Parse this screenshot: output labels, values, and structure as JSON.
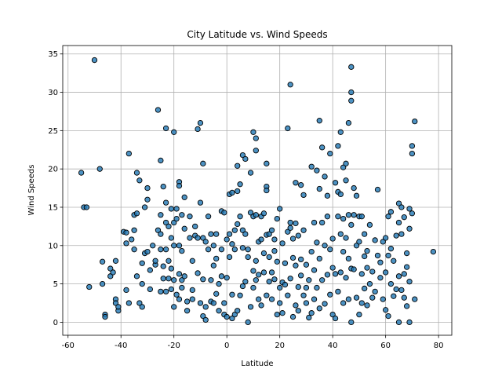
{
  "chart_data": {
    "type": "scatter",
    "title": "City Latitude vs. Wind Speeds",
    "x_label": "Latitude",
    "y_label": "Wind Speeds",
    "color": "#1f77b4",
    "edgecolor": "#000000",
    "grid": true,
    "xlim": [
      -62,
      85
    ],
    "ylim": [
      -1.7,
      36.1
    ],
    "xticks": [
      -60,
      -40,
      -20,
      0,
      20,
      40,
      60,
      80
    ],
    "yticks": [
      0,
      5,
      10,
      15,
      20,
      25,
      30,
      35
    ],
    "x": [
      -55,
      -54,
      -53,
      -52,
      -50,
      -48,
      -47,
      -47,
      -46,
      -46,
      -44,
      -44,
      -43,
      -42,
      -42,
      -42,
      -41,
      -41,
      -39,
      -38,
      -38,
      -38,
      -37,
      -37,
      -36,
      -35,
      -35,
      -35,
      -34,
      -34,
      -34,
      -33,
      -33,
      -32,
      -32,
      -32,
      -31,
      -31,
      -30,
      -30,
      -30,
      -29,
      -29,
      -28,
      -27,
      -27,
      -26,
      -26,
      -25,
      -25,
      -25,
      -25,
      -25,
      -24,
      -24,
      -24,
      -23,
      -23,
      -23,
      -23,
      -23,
      -22,
      -22,
      -22,
      -21,
      -21,
      -21,
      -21,
      -20,
      -20,
      -20,
      -20,
      -20,
      -19,
      -19,
      -19,
      -18,
      -18,
      -18,
      -18,
      -18,
      -17,
      -17,
      -17,
      -17,
      -16,
      -16,
      -16,
      -15,
      -15,
      -14,
      -14,
      -13,
      -13,
      -13,
      -12,
      -12,
      -11,
      -11,
      -11,
      -10,
      -10,
      -10,
      -9,
      -9,
      -9,
      -9,
      -8,
      -8,
      -8,
      -7,
      -7,
      -6,
      -6,
      -6,
      -5,
      -5,
      -5,
      -4,
      -4,
      -4,
      -3,
      -3,
      -2,
      -2,
      -2,
      -1,
      -1,
      -1,
      0,
      0,
      0,
      1,
      1,
      1,
      2,
      2,
      2,
      2,
      3,
      3,
      3,
      4,
      4,
      4,
      4,
      5,
      5,
      5,
      6,
      6,
      6,
      6,
      7,
      7,
      7,
      8,
      8,
      8,
      9,
      9,
      9,
      10,
      10,
      10,
      10,
      11,
      11,
      11,
      11,
      11,
      12,
      12,
      12,
      13,
      13,
      13,
      14,
      14,
      14,
      15,
      15,
      15,
      15,
      15,
      16,
      16,
      16,
      17,
      17,
      17,
      18,
      18,
      18,
      19,
      19,
      19,
      20,
      20,
      20,
      21,
      21,
      21,
      22,
      22,
      23,
      23,
      23,
      24,
      24,
      24,
      24,
      25,
      25,
      25,
      26,
      26,
      26,
      26,
      27,
      27,
      27,
      28,
      28,
      28,
      29,
      29,
      29,
      30,
      30,
      30,
      31,
      31,
      32,
      32,
      32,
      33,
      33,
      33,
      34,
      34,
      34,
      35,
      35,
      35,
      35,
      36,
      36,
      36,
      37,
      37,
      37,
      38,
      38,
      38,
      39,
      39,
      39,
      40,
      40,
      40,
      41,
      41,
      41,
      42,
      42,
      42,
      42,
      43,
      43,
      43,
      43,
      44,
      44,
      44,
      44,
      45,
      45,
      45,
      45,
      46,
      46,
      46,
      46,
      47,
      47,
      47,
      47,
      47,
      47,
      48,
      48,
      48,
      49,
      49,
      49,
      50,
      50,
      50,
      51,
      51,
      51,
      52,
      52,
      52,
      53,
      53,
      53,
      54,
      54,
      55,
      55,
      56,
      56,
      57,
      57,
      58,
      58,
      59,
      59,
      60,
      60,
      60,
      61,
      61,
      61,
      62,
      62,
      62,
      63,
      63,
      64,
      64,
      65,
      65,
      65,
      65,
      66,
      66,
      66,
      67,
      67,
      67,
      68,
      68,
      68,
      69,
      69,
      69,
      69,
      70,
      70,
      70,
      71,
      71,
      78
    ],
    "y": [
      19.5,
      15,
      15,
      4.6,
      34.2,
      20,
      7.9,
      5,
      1,
      0.7,
      6,
      7,
      6.5,
      3,
      2.5,
      8,
      1.5,
      2,
      11.8,
      10.3,
      4.2,
      11.7,
      22,
      2.5,
      10.8,
      9.5,
      12,
      14,
      19.5,
      14.2,
      6,
      18.5,
      2.5,
      5,
      2,
      7.7,
      15,
      9,
      17.5,
      16,
      9.2,
      6.8,
      4.3,
      10,
      7.5,
      8,
      27.7,
      12,
      11.5,
      14,
      21.1,
      9.5,
      4,
      17.7,
      7.3,
      5.7,
      25.3,
      15.6,
      13,
      9.5,
      4,
      12.5,
      8,
      5.7,
      14.8,
      11,
      7,
      4.3,
      24.8,
      13,
      10,
      5.5,
      2,
      14.8,
      13.5,
      3.6,
      18.3,
      17.8,
      10,
      6.3,
      3,
      14,
      9.3,
      5.5,
      4.5,
      16.3,
      12.2,
      6,
      1.5,
      2.7,
      13.8,
      11,
      4.2,
      3,
      8,
      12.5,
      11.3,
      25.2,
      11,
      6.4,
      26,
      15.6,
      2.5,
      20.7,
      11,
      5.6,
      0.8,
      0.3,
      10.5,
      2,
      9.5,
      13.8,
      11.5,
      2.7,
      5.5,
      2.5,
      7.4,
      10,
      11.5,
      8.3,
      3.7,
      1.5,
      5,
      14.5,
      9.5,
      6,
      1,
      2.5,
      14.3,
      10.8,
      0.7,
      5.8,
      8.5,
      11.5,
      16.7,
      16.9,
      0.5,
      3.6,
      10.2,
      1,
      9.5,
      12,
      12.8,
      20.4,
      17.1,
      1.5,
      18,
      13.8,
      3.5,
      21.8,
      12,
      9.7,
      4.7,
      21.3,
      11.5,
      5.3,
      0,
      9.5,
      8.5,
      19.5,
      14.3,
      2,
      24.8,
      13.8,
      6.7,
      4.5,
      24,
      22.4,
      14,
      8,
      5.5,
      10.5,
      6.2,
      3,
      13.8,
      10.8,
      2.2,
      14.2,
      9,
      6.5,
      20.7,
      17.7,
      17.2,
      11.4,
      3.5,
      11.5,
      8.5,
      5.3,
      12,
      6.5,
      3,
      9.3,
      10.8,
      5.6,
      13.5,
      7.9,
      1,
      14.8,
      4.5,
      2.5,
      10.3,
      5.2,
      1.2,
      7.7,
      4.9,
      25.3,
      11.8,
      3.5,
      31,
      13,
      12.3,
      5.7,
      10.9,
      8.4,
      0.7,
      18.2,
      12.9,
      7.4,
      2.2,
      11.3,
      4.6,
      1.5,
      8.2,
      6.1,
      17.9,
      16.6,
      12,
      3.5,
      7.5,
      2.5,
      4.5,
      0.6,
      5.5,
      20.3,
      9.2,
      1.2,
      13,
      6.8,
      3,
      10.4,
      19.8,
      4.5,
      26.3,
      17.4,
      8.3,
      1.8,
      22.8,
      13,
      5.5,
      19,
      10,
      2.4,
      16.5,
      13.8,
      6.2,
      22,
      9.5,
      3.6,
      10.9,
      7.1,
      1,
      18.2,
      6.3,
      0.5,
      23,
      17,
      13.8,
      4,
      24.8,
      16.7,
      11.5,
      6.5,
      20.2,
      13.5,
      9.2,
      2.5,
      20.7,
      18.5,
      11,
      5.8,
      26,
      14,
      8.3,
      3,
      33.3,
      30,
      28.9,
      12.7,
      7,
      0,
      17.5,
      14,
      6.9,
      16.5,
      10,
      3.2,
      13.8,
      10.5,
      1,
      13.8,
      6.3,
      2.5,
      8.6,
      11.5,
      4.4,
      9.3,
      7.1,
      2.2,
      12.7,
      5,
      6.6,
      3.2,
      10.7,
      4,
      17.3,
      8.7,
      7.8,
      5.8,
      3,
      10.5,
      11,
      6.5,
      1.6,
      13.8,
      8.7,
      0.8,
      14.4,
      9.6,
      5,
      8,
      3.4,
      11.3,
      4.3,
      15.5,
      13,
      6,
      0,
      15,
      11.5,
      4.2,
      13.7,
      6.3,
      3.2,
      9,
      7.2,
      2.1,
      14.8,
      12.2,
      5.3,
      0,
      22,
      23,
      14.2,
      26.2,
      3,
      9.2
    ]
  }
}
